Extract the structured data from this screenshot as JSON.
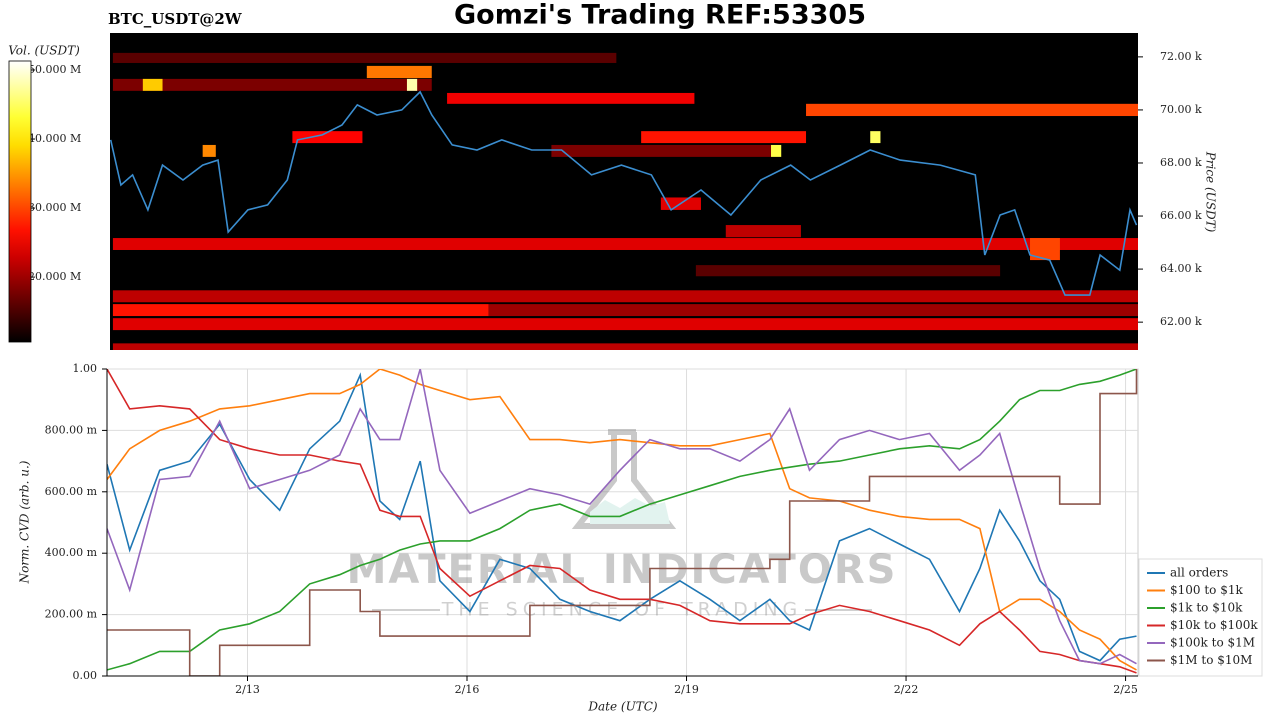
{
  "title": "Gomzi's Trading REF:53305",
  "watermark": {
    "brand": "MATERIAL INDICATORS",
    "tagline": "THE SCIENCE OF TRADING"
  },
  "chart_data": [
    {
      "type": "heatmap",
      "title": "BTC_USDT@2W",
      "ylabel": "Price (USDT)",
      "colorbar_label": "Vol. (USDT)",
      "xlim": [
        11.08,
        25.17
      ],
      "ylim": [
        60950,
        72900
      ],
      "yticks": [
        {
          "value": 62000,
          "label": "62.00 k"
        },
        {
          "value": 64000,
          "label": "64.00 k"
        },
        {
          "value": 66000,
          "label": "66.00 k"
        },
        {
          "value": 68000,
          "label": "68.00 k"
        },
        {
          "value": 70000,
          "label": "70.00 k"
        },
        {
          "value": 72000,
          "label": "72.00 k"
        }
      ],
      "vlim": [
        10600000,
        51300000
      ],
      "vticks": [
        {
          "value": 20000000,
          "label": "20.000 M"
        },
        {
          "value": 30000000,
          "label": "30.000 M"
        },
        {
          "value": 40000000,
          "label": "40.000 M"
        },
        {
          "value": 50000000,
          "label": "50.000 M"
        }
      ],
      "cells": [
        {
          "x0": 11.12,
          "x1": 25.17,
          "y0": 64720,
          "y1": 65170,
          "v": 24000000
        },
        {
          "x0": 11.12,
          "x1": 25.17,
          "y0": 62750,
          "y1": 63200,
          "v": 22000000
        },
        {
          "x0": 11.12,
          "x1": 16.27,
          "y0": 62230,
          "y1": 62680,
          "v": 27000000
        },
        {
          "x0": 16.27,
          "x1": 25.17,
          "y0": 62230,
          "y1": 62680,
          "v": 20000000
        },
        {
          "x0": 11.12,
          "x1": 25.17,
          "y0": 61700,
          "y1": 62150,
          "v": 24000000
        },
        {
          "x0": 11.12,
          "x1": 25.17,
          "y0": 60950,
          "y1": 61200,
          "v": 22000000
        },
        {
          "x0": 20.62,
          "x1": 25.17,
          "y0": 69770,
          "y1": 70230,
          "v": 30000000
        },
        {
          "x0": 15.7,
          "x1": 19.09,
          "y0": 70230,
          "y1": 70640,
          "v": 25000000
        },
        {
          "x0": 14.6,
          "x1": 15.49,
          "y0": 71200,
          "y1": 71660,
          "v": 33000000
        },
        {
          "x0": 11.12,
          "x1": 15.49,
          "y0": 70720,
          "y1": 71170,
          "v": 18000000
        },
        {
          "x0": 11.53,
          "x1": 11.8,
          "y0": 70720,
          "y1": 71170,
          "v": 38000000
        },
        {
          "x0": 18.36,
          "x1": 20.62,
          "y0": 68750,
          "y1": 69200,
          "v": 27000000
        },
        {
          "x0": 19.52,
          "x1": 20.55,
          "y0": 65200,
          "y1": 65660,
          "v": 22000000
        },
        {
          "x0": 11.12,
          "x1": 18.02,
          "y0": 71770,
          "y1": 72150,
          "v": 16000000
        },
        {
          "x0": 19.11,
          "x1": 23.28,
          "y0": 63730,
          "y1": 64150,
          "v": 16000000
        },
        {
          "x0": 17.13,
          "x1": 20.14,
          "y0": 68230,
          "y1": 68680,
          "v": 18000000
        },
        {
          "x0": 13.58,
          "x1": 14.54,
          "y0": 68750,
          "y1": 69200,
          "v": 26000000
        },
        {
          "x0": 18.63,
          "x1": 19.18,
          "y0": 66230,
          "y1": 66700,
          "v": 24000000
        },
        {
          "x0": 23.69,
          "x1": 24.1,
          "y0": 64340,
          "y1": 65170,
          "v": 30000000
        },
        {
          "x0": 15.15,
          "x1": 15.29,
          "y0": 70720,
          "y1": 71170,
          "v": 48000000
        },
        {
          "x0": 21.5,
          "x1": 21.64,
          "y0": 68750,
          "y1": 69200,
          "v": 45000000
        },
        {
          "x0": 20.14,
          "x1": 20.28,
          "y0": 68230,
          "y1": 68680,
          "v": 44000000
        },
        {
          "x0": 12.35,
          "x1": 12.53,
          "y0": 68230,
          "y1": 68680,
          "v": 34000000
        }
      ],
      "price": {
        "color": "#3b8ed0",
        "x": [
          11.09,
          11.23,
          11.39,
          11.6,
          11.8,
          12.08,
          12.35,
          12.56,
          12.7,
          12.97,
          13.24,
          13.51,
          13.65,
          13.99,
          14.26,
          14.47,
          14.74,
          15.08,
          15.33,
          15.49,
          15.77,
          16.11,
          16.45,
          16.86,
          17.27,
          17.68,
          18.09,
          18.5,
          18.77,
          19.18,
          19.59,
          20.0,
          20.41,
          20.68,
          21.09,
          21.5,
          21.91,
          22.46,
          22.94,
          23.07,
          23.28,
          23.48,
          23.69,
          23.96,
          24.17,
          24.51,
          24.65,
          24.92,
          25.06,
          25.15
        ],
        "values": [
          68870,
          67170,
          67550,
          66230,
          67920,
          67360,
          67920,
          68110,
          65400,
          66230,
          66420,
          67360,
          68870,
          69060,
          69430,
          70190,
          69810,
          70000,
          70680,
          69810,
          68680,
          68490,
          68870,
          68490,
          68490,
          67550,
          67920,
          67550,
          66230,
          66980,
          66040,
          67360,
          67920,
          67360,
          67920,
          68490,
          68110,
          67920,
          67550,
          64530,
          66040,
          66230,
          64530,
          64340,
          63020,
          63020,
          64530,
          63960,
          66230,
          65660
        ]
      }
    },
    {
      "type": "line",
      "xlabel": "Date (UTC)",
      "ylabel": "Norm. CVD (arb. u.)",
      "grid": true,
      "legend": "lower right",
      "xlim": [
        11.08,
        25.17
      ],
      "ylim": [
        0,
        1
      ],
      "xticks": [
        {
          "value": 13,
          "label": "2/13"
        },
        {
          "value": 16,
          "label": "2/16"
        },
        {
          "value": 19,
          "label": "2/19"
        },
        {
          "value": 22,
          "label": "2/22"
        },
        {
          "value": 25,
          "label": "2/25"
        }
      ],
      "yticks": [
        {
          "value": 0,
          "label": "0.00"
        },
        {
          "value": 0.2,
          "label": "200.00 m"
        },
        {
          "value": 0.4,
          "label": "400.00 m"
        },
        {
          "value": 0.6,
          "label": "600.00 m"
        },
        {
          "value": 0.8,
          "label": "800.00 m"
        },
        {
          "value": 1,
          "label": "1.00"
        }
      ],
      "x": [
        11.08,
        11.39,
        11.8,
        12.21,
        12.62,
        13.03,
        13.44,
        13.85,
        14.26,
        14.54,
        14.81,
        15.08,
        15.36,
        15.63,
        16.04,
        16.45,
        16.86,
        17.27,
        17.68,
        18.09,
        18.5,
        18.91,
        19.32,
        19.73,
        20.14,
        20.41,
        20.68,
        21.09,
        21.5,
        21.91,
        22.32,
        22.73,
        23.01,
        23.28,
        23.55,
        23.83,
        24.1,
        24.37,
        24.65,
        24.92,
        25.15
      ],
      "series": [
        {
          "name": "all orders",
          "color": "#1f77b4",
          "values": [
            0.69,
            0.41,
            0.67,
            0.7,
            0.82,
            0.64,
            0.54,
            0.74,
            0.83,
            0.98,
            0.57,
            0.51,
            0.7,
            0.31,
            0.21,
            0.38,
            0.35,
            0.25,
            0.21,
            0.18,
            0.25,
            0.31,
            0.25,
            0.18,
            0.25,
            0.18,
            0.15,
            0.44,
            0.48,
            0.43,
            0.38,
            0.21,
            0.35,
            0.54,
            0.44,
            0.31,
            0.25,
            0.08,
            0.05,
            0.12,
            0.13
          ]
        },
        {
          "name": "$100 to $1k",
          "color": "#ff7f0e",
          "values": [
            0.64,
            0.74,
            0.8,
            0.83,
            0.87,
            0.88,
            0.9,
            0.92,
            0.92,
            0.95,
            1.0,
            0.98,
            0.95,
            0.93,
            0.9,
            0.91,
            0.77,
            0.77,
            0.76,
            0.77,
            0.76,
            0.75,
            0.75,
            0.77,
            0.79,
            0.61,
            0.58,
            0.57,
            0.54,
            0.52,
            0.51,
            0.51,
            0.48,
            0.21,
            0.25,
            0.25,
            0.21,
            0.15,
            0.12,
            0.05,
            0.02
          ]
        },
        {
          "name": "$1k to $10k",
          "color": "#2ca02c",
          "values": [
            0.02,
            0.04,
            0.08,
            0.08,
            0.15,
            0.17,
            0.21,
            0.3,
            0.33,
            0.36,
            0.38,
            0.41,
            0.43,
            0.44,
            0.44,
            0.48,
            0.54,
            0.56,
            0.52,
            0.52,
            0.56,
            0.59,
            0.62,
            0.65,
            0.67,
            0.68,
            0.69,
            0.7,
            0.72,
            0.74,
            0.75,
            0.74,
            0.77,
            0.83,
            0.9,
            0.93,
            0.93,
            0.95,
            0.96,
            0.98,
            1.0
          ]
        },
        {
          "name": "$10k to $100k",
          "color": "#d62728",
          "values": [
            1.0,
            0.87,
            0.88,
            0.87,
            0.77,
            0.74,
            0.72,
            0.72,
            0.7,
            0.69,
            0.54,
            0.52,
            0.52,
            0.35,
            0.26,
            0.31,
            0.36,
            0.35,
            0.28,
            0.25,
            0.25,
            0.23,
            0.18,
            0.17,
            0.17,
            0.17,
            0.2,
            0.23,
            0.21,
            0.18,
            0.15,
            0.1,
            0.17,
            0.21,
            0.15,
            0.08,
            0.07,
            0.05,
            0.04,
            0.03,
            0.01
          ]
        },
        {
          "name": "$100k to $1M",
          "color": "#9467bd",
          "values": [
            0.48,
            0.28,
            0.64,
            0.65,
            0.83,
            0.61,
            0.64,
            0.67,
            0.72,
            0.87,
            0.77,
            0.77,
            1.0,
            0.67,
            0.53,
            0.57,
            0.61,
            0.59,
            0.56,
            0.67,
            0.77,
            0.74,
            0.74,
            0.7,
            0.77,
            0.87,
            0.67,
            0.77,
            0.8,
            0.77,
            0.79,
            0.67,
            0.72,
            0.79,
            0.57,
            0.35,
            0.18,
            0.05,
            0.04,
            0.07,
            0.04
          ]
        },
        {
          "name": "$1M to $10M",
          "color": "#8c564b",
          "drawstyle": "steps-post",
          "values": [
            0.15,
            0.15,
            0.15,
            0,
            0.1,
            0.1,
            0.1,
            0.28,
            0.28,
            0.21,
            0.13,
            0.13,
            0.13,
            0.13,
            0.13,
            0.13,
            0.23,
            0.23,
            0.23,
            0.23,
            0.35,
            0.35,
            0.35,
            0.35,
            0.38,
            0.57,
            0.57,
            0.57,
            0.65,
            0.65,
            0.65,
            0.65,
            0.65,
            0.65,
            0.65,
            0.65,
            0.56,
            0.56,
            0.92,
            0.92,
            1.0
          ]
        }
      ]
    }
  ]
}
